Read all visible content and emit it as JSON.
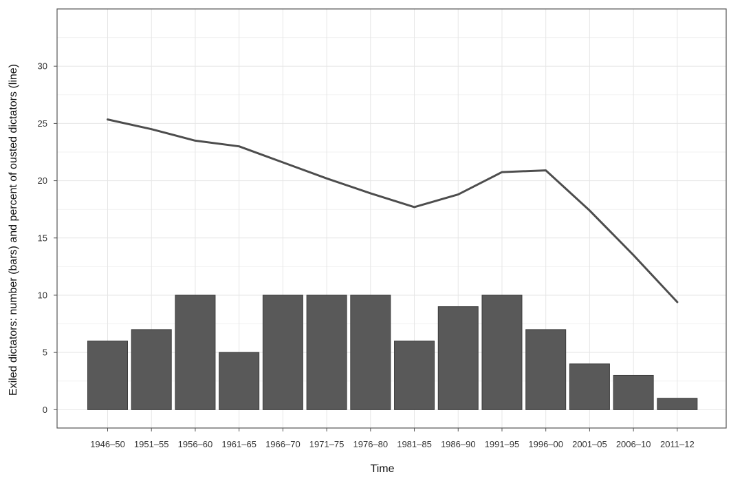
{
  "chart_data": {
    "type": "bar",
    "title": "",
    "xlabel": "Time",
    "ylabel": "Exiled dictators: number (bars) and percent of ousted dictators (line)",
    "categories": [
      "1946–50",
      "1951–55",
      "1956–60",
      "1961–65",
      "1966–70",
      "1971–75",
      "1976–80",
      "1981–85",
      "1986–90",
      "1991–95",
      "1996–00",
      "2001–05",
      "2006–10",
      "2011–12"
    ],
    "series": [
      {
        "type": "bar",
        "values": [
          6,
          7,
          10,
          5,
          10,
          10,
          10,
          6,
          9,
          10,
          7,
          4,
          3,
          1
        ],
        "color": "#595959"
      },
      {
        "type": "line",
        "values": [
          25.35,
          24.5,
          23.5,
          23.0,
          21.6,
          20.2,
          18.9,
          17.7,
          18.8,
          20.75,
          20.9,
          17.4,
          13.5,
          9.4
        ],
        "color": "#4d4d4d"
      }
    ],
    "ylim": [
      -1.6,
      35
    ],
    "yticks": [
      0,
      5,
      10,
      15,
      20,
      25,
      30
    ],
    "grid": true,
    "legend": "none"
  }
}
